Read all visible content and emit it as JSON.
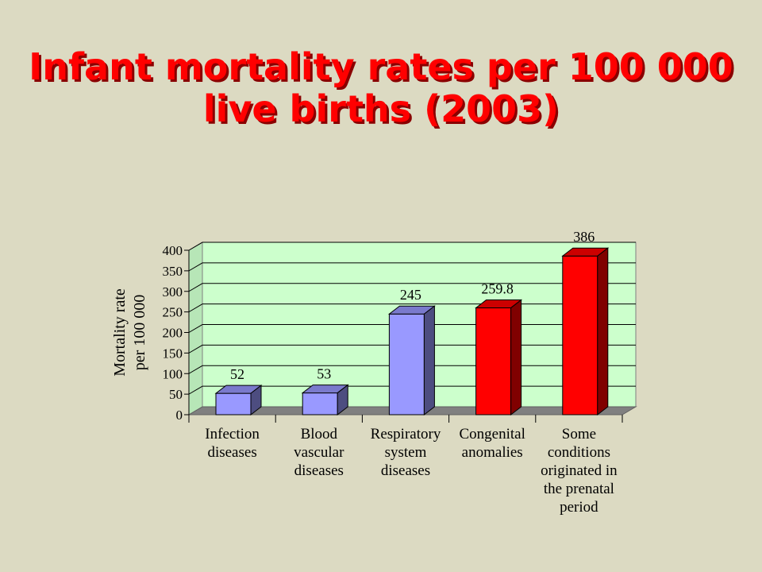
{
  "title_line1": "Infant mortality rates per 100 000",
  "title_line2": "live births  (2003)",
  "chart_data": {
    "type": "bar",
    "categories": [
      [
        "Infection",
        "diseases"
      ],
      [
        "Blood",
        "vascular",
        "diseases"
      ],
      [
        "Respiratory",
        "system",
        "diseases"
      ],
      [
        "Congenital",
        "anomalies"
      ],
      [
        "Some",
        "conditions",
        "originated in",
        "the prenatal",
        "period"
      ]
    ],
    "values": [
      52,
      53,
      245,
      259.8,
      386
    ],
    "data_labels": [
      "52",
      "53",
      "245",
      "259.8",
      "386"
    ],
    "bar_colors": [
      "#9999ff",
      "#9999ff",
      "#9999ff",
      "#ff0000",
      "#ff0000"
    ],
    "ylabel_lines": [
      "Mortality rate",
      "per 100 000"
    ],
    "ylim": [
      0,
      400
    ],
    "yticks": [
      0,
      50,
      100,
      150,
      200,
      250,
      300,
      350,
      400
    ],
    "grid": true,
    "plot_background": "#ccffcc"
  }
}
